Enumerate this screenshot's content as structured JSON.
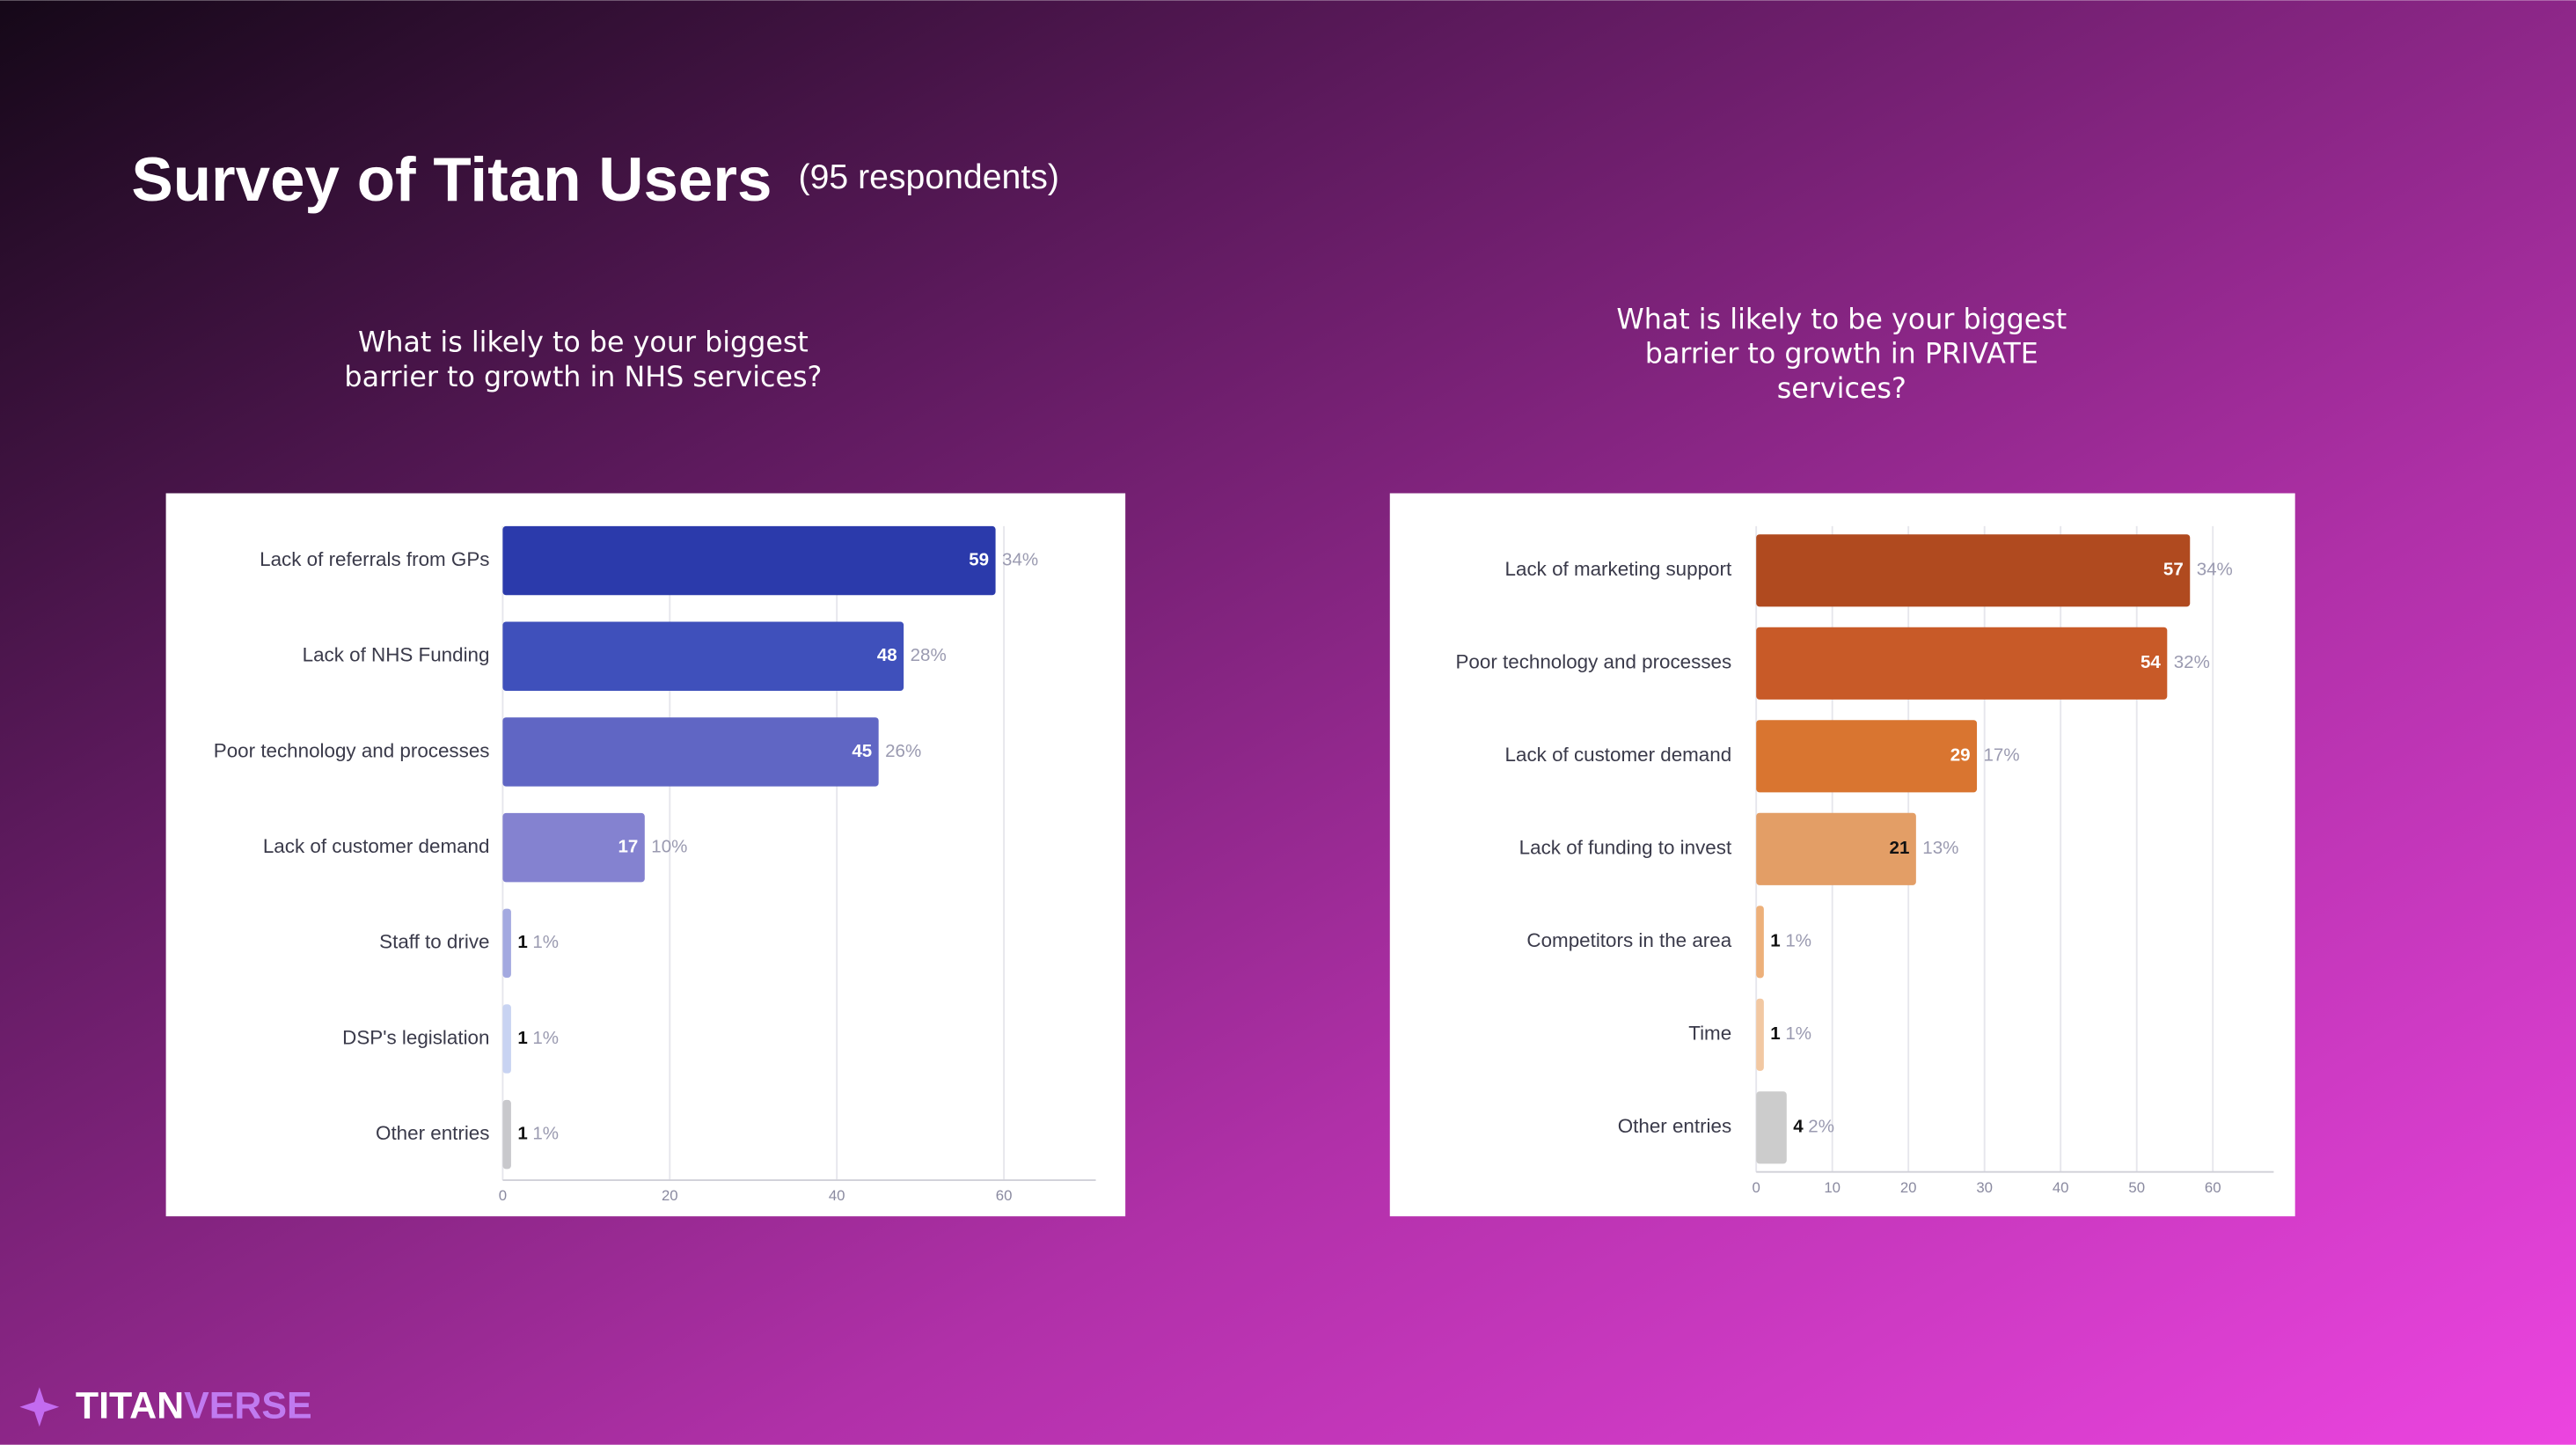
{
  "header": {
    "title": "Survey of Titan Users",
    "subtitle": "(95 respondents)"
  },
  "brand": [
    "TITAN",
    "VERSE"
  ],
  "chart_data": [
    {
      "type": "bar",
      "orientation": "horizontal",
      "title": [
        "What is likely to be your biggest",
        "barrier to growth in NHS services?"
      ],
      "categories": [
        "Lack of referrals from GPs",
        "Lack of NHS Funding",
        "Poor technology and processes",
        "Lack of customer demand",
        "Staff to drive",
        "DSP's legislation",
        "Other entries"
      ],
      "values": [
        59,
        48,
        45,
        17,
        1,
        1,
        1
      ],
      "share_labels": [
        "34%",
        "28%",
        "26%",
        "10%",
        "1%",
        "1%",
        "1%"
      ],
      "colors": [
        "#2b3aab",
        "#3f50bb",
        "#6066c4",
        "#8482d0",
        "#a3a9e0",
        "#c8d3f2",
        "#c8c8cc"
      ],
      "xlim": [
        0,
        71
      ],
      "xticks": [
        0,
        20,
        40,
        60
      ],
      "grid": true
    },
    {
      "type": "bar",
      "orientation": "horizontal",
      "title": [
        "What is likely to be your biggest",
        "barrier to growth in PRIVATE",
        "services?"
      ],
      "categories": [
        "Lack of marketing support",
        "Poor technology and processes",
        "Lack of customer demand",
        "Lack of funding to invest",
        "Competitors in the area",
        "Time",
        "Other entries"
      ],
      "values": [
        57,
        54,
        29,
        21,
        1,
        1,
        4
      ],
      "share_labels": [
        "34%",
        "32%",
        "17%",
        "13%",
        "1%",
        "1%",
        "2%"
      ],
      "colors": [
        "#b04a1f",
        "#c85a28",
        "#d97530",
        "#e39e66",
        "#edb07a",
        "#f2c8a2",
        "#cccccc"
      ],
      "xlim": [
        0,
        68
      ],
      "xticks": [
        0,
        10,
        20,
        30,
        40,
        50,
        60
      ],
      "grid": true
    }
  ]
}
